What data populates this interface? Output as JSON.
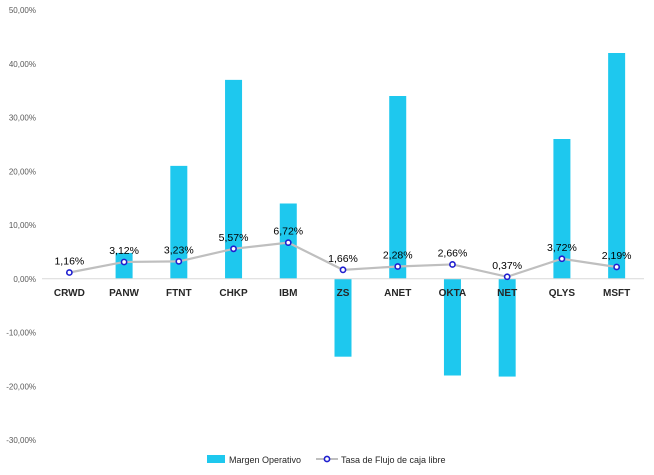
{
  "chart_data": {
    "type": "bar",
    "categories": [
      "CRWD",
      "PANW",
      "FTNT",
      "CHKP",
      "IBM",
      "ZS",
      "ANET",
      "OKTA",
      "NET",
      "QLYS",
      "MSFT"
    ],
    "series": [
      {
        "name": "Margen Operativo",
        "type": "bar",
        "values": [
          0.0,
          4.8,
          21.0,
          37.0,
          14.0,
          -14.5,
          34.0,
          -18.0,
          -18.2,
          26.0,
          42.0
        ],
        "color": "#1ec8ee"
      },
      {
        "name": "Tasa de Flujo de caja libre",
        "type": "line",
        "values": [
          1.16,
          3.12,
          3.23,
          5.57,
          6.72,
          1.66,
          2.28,
          2.66,
          0.37,
          3.72,
          2.19
        ],
        "labels": [
          "1,16%",
          "3,12%",
          "3,23%",
          "5,57%",
          "6,72%",
          "1,66%",
          "2,28%",
          "2,66%",
          "0,37%",
          "3,72%",
          "2,19%"
        ],
        "line_color": "#bfbfbf",
        "marker_color": "#1f1fcf"
      }
    ],
    "ylim": [
      -30,
      50
    ],
    "yticks": [
      50,
      40,
      30,
      20,
      10,
      0,
      -10,
      -20,
      -30
    ],
    "ytick_labels": [
      "50,00%",
      "40,00%",
      "30,00%",
      "20,00%",
      "10,00%",
      "0,00%",
      "-10,00%",
      "-20,00%",
      "-30,00%"
    ],
    "grid": false,
    "legend_position": "bottom",
    "title": "",
    "xlabel": "",
    "ylabel": ""
  }
}
